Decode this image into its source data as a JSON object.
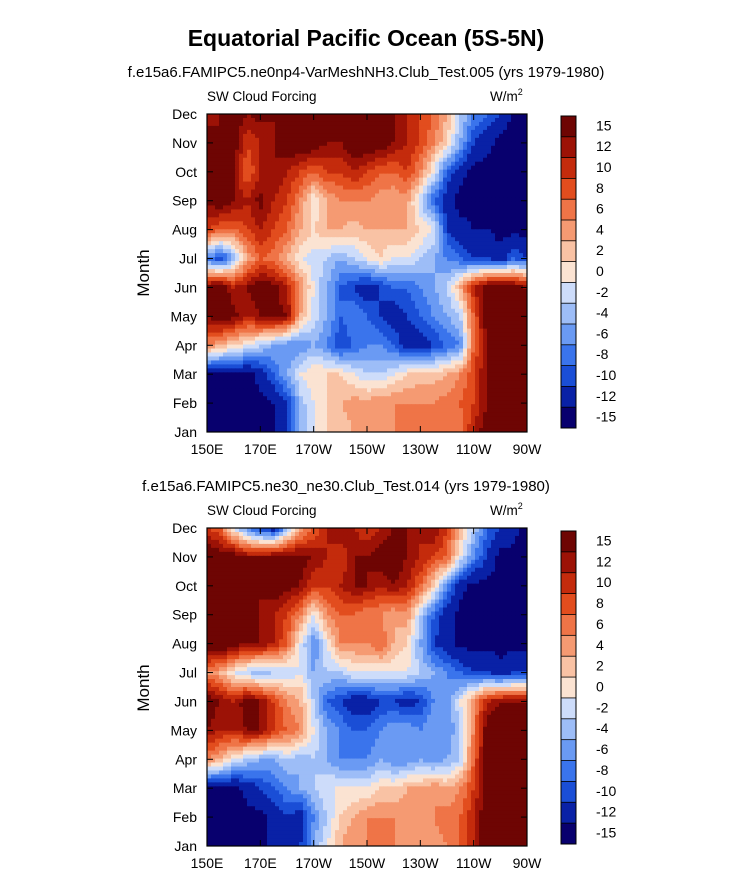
{
  "title": "Equatorial Pacific Ocean (5S-5N)",
  "color_levels": [
    "#08006e",
    "#0921a6",
    "#1a4ed6",
    "#3a74ec",
    "#6a9af3",
    "#9dbdf7",
    "#cddcfa",
    "#fbe3d2",
    "#f9c2a4",
    "#f59a72",
    "#ef7447",
    "#e24d1e",
    "#c42b0c",
    "#9c1206",
    "#6e0503"
  ],
  "chart_data": [
    {
      "type": "heatmap",
      "subtitle": "f.e15a6.FAMIPC5.ne0np4-VarMeshNH3.Club_Test.005 (yrs 1979-1980)",
      "left_label": "SW Cloud Forcing",
      "right_label": "W/m",
      "units_superscript": "2",
      "ylabel": "Month",
      "xlabel": "",
      "x_ticks": [
        "150E",
        "170E",
        "170W",
        "150W",
        "130W",
        "110W",
        "90W"
      ],
      "y_ticks": [
        "Jan",
        "Feb",
        "Mar",
        "Apr",
        "May",
        "Jun",
        "Jul",
        "Aug",
        "Sep",
        "Oct",
        "Nov",
        "Dec"
      ],
      "colorbar_labels": [
        "15",
        "12",
        "10",
        "8",
        "6",
        "4",
        "2",
        "0",
        "-2",
        "-4",
        "-6",
        "-8",
        "-10",
        "-12",
        "-15"
      ],
      "x": [
        "150E",
        "155E",
        "160E",
        "165E",
        "170E",
        "175E",
        "180",
        "175W",
        "170W",
        "165W",
        "160W",
        "155W",
        "150W",
        "145W",
        "140W",
        "135W",
        "130W",
        "125W",
        "120W",
        "115W",
        "110W",
        "105W",
        "100W",
        "95W",
        "90W"
      ],
      "months": [
        "Jan",
        "Feb",
        "Mar",
        "Apr",
        "May",
        "Jun",
        "Jul",
        "Aug",
        "Sep",
        "Oct",
        "Nov",
        "Dec"
      ],
      "values": [
        [
          -16,
          -16,
          -16,
          -16,
          -16,
          -15,
          -12,
          -6,
          -2,
          0,
          1,
          2,
          3,
          3,
          4,
          5,
          4,
          5,
          4,
          5,
          10,
          14,
          16,
          16,
          16
        ],
        [
          -16,
          -16,
          -16,
          -16,
          -16,
          -15,
          -12,
          -5,
          -2,
          0,
          2,
          3,
          3,
          4,
          4,
          4,
          4,
          4,
          5,
          6,
          8,
          12,
          15,
          16,
          16
        ],
        [
          -16,
          -16,
          -16,
          -16,
          -14,
          -10,
          -6,
          -2,
          0,
          0,
          0,
          -2,
          -4,
          -4,
          -2,
          0,
          1,
          1,
          2,
          4,
          8,
          12,
          15,
          16,
          16
        ],
        [
          4,
          2,
          0,
          -2,
          -4,
          -6,
          -8,
          -8,
          -6,
          -8,
          -12,
          -10,
          -8,
          -8,
          -10,
          -14,
          -14,
          -12,
          -10,
          -8,
          6,
          12,
          15,
          16,
          16
        ],
        [
          12,
          14,
          13,
          10,
          12,
          13,
          12,
          2,
          -3,
          -6,
          -10,
          -8,
          -10,
          -12,
          -14,
          -12,
          -10,
          -8,
          -6,
          -4,
          6,
          14,
          16,
          16,
          16
        ],
        [
          13,
          15,
          10,
          12,
          14,
          13,
          10,
          4,
          -2,
          -6,
          -10,
          -12,
          -14,
          -12,
          -10,
          -10,
          -8,
          -6,
          -4,
          2,
          10,
          14,
          15,
          14,
          12
        ],
        [
          -8,
          -12,
          -6,
          2,
          6,
          5,
          2,
          -2,
          -3,
          -4,
          -6,
          -4,
          -2,
          0,
          -2,
          -2,
          -4,
          -6,
          -8,
          -10,
          -12,
          -12,
          -14,
          -10,
          -12
        ],
        [
          8,
          6,
          6,
          8,
          10,
          8,
          6,
          2,
          0,
          2,
          2,
          1,
          2,
          2,
          2,
          2,
          0,
          -2,
          -12,
          -14,
          -15,
          -15,
          -16,
          -16,
          -16
        ],
        [
          13,
          14,
          12,
          10,
          13,
          10,
          8,
          4,
          -2,
          2,
          4,
          4,
          4,
          3,
          2,
          3,
          -4,
          -10,
          -14,
          -16,
          -16,
          -16,
          -16,
          -16,
          -16
        ],
        [
          12,
          15,
          12,
          6,
          10,
          12,
          10,
          8,
          6,
          8,
          8,
          10,
          8,
          6,
          6,
          8,
          4,
          -2,
          -10,
          -14,
          -16,
          -16,
          -16,
          -16,
          -16
        ],
        [
          15,
          12,
          14,
          8,
          10,
          12,
          14,
          15,
          14,
          12,
          12,
          14,
          15,
          14,
          12,
          10,
          8,
          4,
          0,
          -6,
          -12,
          -14,
          -16,
          -16,
          -16
        ],
        [
          10,
          12,
          14,
          12,
          13,
          12,
          14,
          13,
          14,
          12,
          12,
          14,
          12,
          12,
          12,
          10,
          8,
          6,
          2,
          -4,
          -8,
          -10,
          -12,
          -16,
          -16
        ]
      ]
    },
    {
      "type": "heatmap",
      "subtitle": "f.e15a6.FAMIPC5.ne30_ne30.Club_Test.014 (yrs 1979-1980)",
      "left_label": "SW Cloud Forcing",
      "right_label": "W/m",
      "units_superscript": "2",
      "ylabel": "Month",
      "xlabel": "",
      "x_ticks": [
        "150E",
        "170E",
        "170W",
        "150W",
        "130W",
        "110W",
        "90W"
      ],
      "y_ticks": [
        "Jan",
        "Feb",
        "Mar",
        "Apr",
        "May",
        "Jun",
        "Jul",
        "Aug",
        "Sep",
        "Oct",
        "Nov",
        "Dec"
      ],
      "colorbar_labels": [
        "15",
        "12",
        "10",
        "8",
        "6",
        "4",
        "2",
        "0",
        "-2",
        "-4",
        "-6",
        "-8",
        "-10",
        "-12",
        "-15"
      ],
      "x": [
        "150E",
        "155E",
        "160E",
        "165E",
        "170E",
        "175E",
        "180",
        "175W",
        "170W",
        "165W",
        "160W",
        "155W",
        "150W",
        "145W",
        "140W",
        "135W",
        "130W",
        "125W",
        "120W",
        "115W",
        "110W",
        "105W",
        "100W",
        "95W",
        "90W"
      ],
      "months": [
        "Jan",
        "Feb",
        "Mar",
        "Apr",
        "May",
        "Jun",
        "Jul",
        "Aug",
        "Sep",
        "Oct",
        "Nov",
        "Dec"
      ],
      "values": [
        [
          -16,
          -16,
          -16,
          -16,
          -16,
          -14,
          -12,
          -12,
          -6,
          -2,
          2,
          4,
          4,
          4,
          4,
          2,
          4,
          3,
          4,
          6,
          10,
          14,
          16,
          16,
          16
        ],
        [
          -16,
          -16,
          -16,
          -16,
          -16,
          -14,
          -12,
          -14,
          -8,
          -4,
          0,
          2,
          4,
          4,
          4,
          3,
          4,
          4,
          5,
          6,
          10,
          14,
          16,
          16,
          16
        ],
        [
          -16,
          -16,
          -16,
          -14,
          -12,
          -10,
          -8,
          -6,
          -4,
          -2,
          -2,
          -2,
          -2,
          0,
          0,
          2,
          2,
          4,
          2,
          4,
          8,
          14,
          16,
          16,
          16
        ],
        [
          4,
          2,
          -2,
          -4,
          -6,
          -6,
          -4,
          -6,
          -4,
          -6,
          -8,
          -8,
          -8,
          -6,
          -8,
          -8,
          -6,
          -8,
          -6,
          -4,
          6,
          14,
          16,
          16,
          16
        ],
        [
          12,
          10,
          10,
          12,
          12,
          8,
          6,
          4,
          -2,
          -6,
          -8,
          -10,
          -10,
          -8,
          -6,
          -6,
          -8,
          -6,
          -8,
          -4,
          4,
          14,
          16,
          16,
          16
        ],
        [
          14,
          12,
          10,
          14,
          12,
          8,
          4,
          2,
          -4,
          -10,
          -12,
          -14,
          -14,
          -12,
          -12,
          -14,
          -12,
          -8,
          -8,
          -2,
          4,
          10,
          12,
          12,
          12
        ],
        [
          4,
          2,
          -2,
          -4,
          -6,
          -4,
          -4,
          -2,
          -6,
          -4,
          -4,
          -2,
          -2,
          -2,
          -2,
          -2,
          -4,
          -6,
          -8,
          -10,
          -12,
          -12,
          -14,
          -12,
          -12
        ],
        [
          15,
          16,
          14,
          12,
          12,
          10,
          6,
          -2,
          -8,
          -2,
          4,
          4,
          4,
          6,
          2,
          0,
          -6,
          -12,
          -14,
          -16,
          -16,
          -16,
          -16,
          -16,
          -16
        ],
        [
          15,
          16,
          14,
          12,
          12,
          10,
          8,
          4,
          -2,
          4,
          6,
          6,
          4,
          4,
          2,
          4,
          -4,
          -10,
          -14,
          -16,
          -16,
          -16,
          -16,
          -16,
          -16
        ],
        [
          16,
          16,
          14,
          12,
          12,
          14,
          13,
          12,
          8,
          8,
          10,
          12,
          12,
          10,
          12,
          10,
          6,
          0,
          -8,
          -14,
          -16,
          -16,
          -16,
          -16,
          -16
        ],
        [
          15,
          14,
          14,
          12,
          12,
          13,
          14,
          13,
          12,
          10,
          8,
          12,
          12,
          14,
          14,
          12,
          10,
          8,
          6,
          -2,
          -8,
          -12,
          -16,
          -16,
          -16
        ],
        [
          8,
          6,
          -2,
          -8,
          -12,
          -14,
          -6,
          2,
          6,
          10,
          12,
          10,
          8,
          10,
          12,
          12,
          10,
          12,
          8,
          2,
          -4,
          -10,
          -12,
          -14,
          -16
        ]
      ]
    }
  ]
}
